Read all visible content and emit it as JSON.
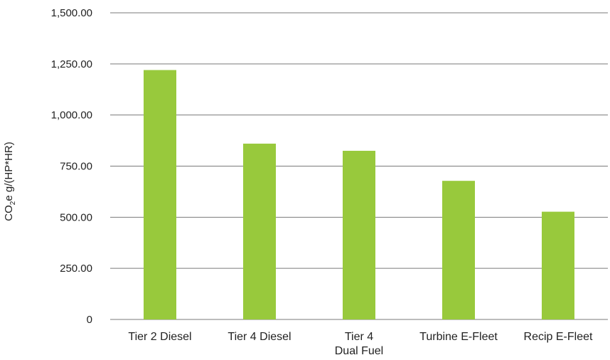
{
  "chart_data": {
    "type": "bar",
    "categories": [
      "Tier 2 Diesel",
      "Tier 4 Diesel",
      "Tier 4 Dual Fuel",
      "Turbine E-Fleet",
      "Recip E-Fleet"
    ],
    "category_lines": [
      [
        "Tier 2 Diesel"
      ],
      [
        "Tier 4 Diesel"
      ],
      [
        "Tier 4",
        "Dual Fuel"
      ],
      [
        "Turbine E-Fleet"
      ],
      [
        "Recip E-Fleet"
      ]
    ],
    "values": [
      1220,
      860,
      825,
      678,
      527
    ],
    "ylim": [
      0,
      1500
    ],
    "yticks": [
      0,
      250,
      500,
      750,
      1000,
      1250,
      1500
    ],
    "ytick_labels": [
      "0",
      "250.00",
      "500.00",
      "750.00",
      "1,000.00",
      "1,250.00",
      "1,500.00"
    ],
    "ylabel": {
      "prefix": "CO",
      "subscript": "2",
      "suffix": "e g/(HP*HR)"
    },
    "xlabel": "",
    "title": "",
    "grid": true,
    "legend": "none",
    "bar_color": "#98c93c",
    "grid_color": "#7a7a7a"
  }
}
